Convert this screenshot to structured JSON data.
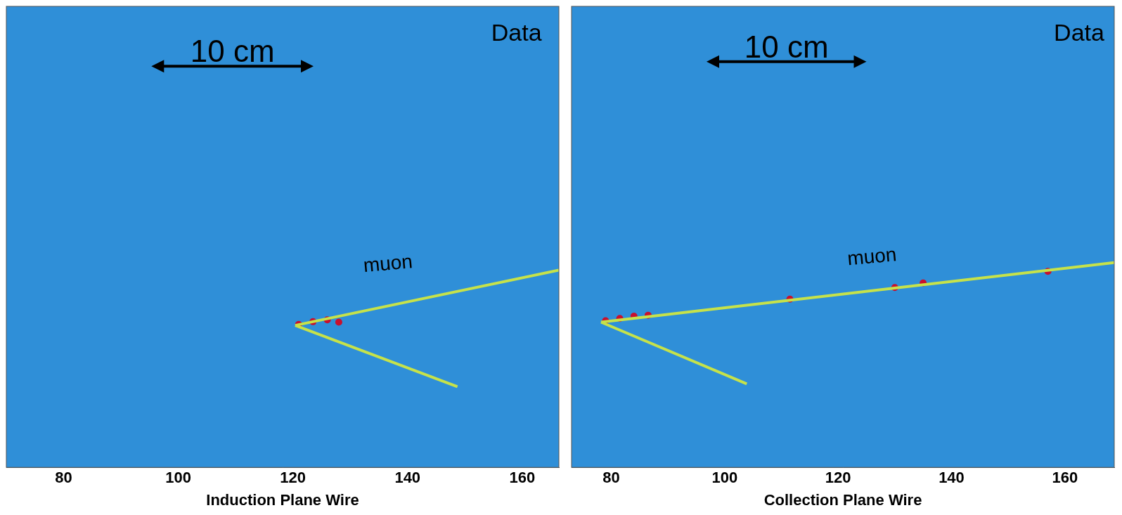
{
  "chart_data": [
    {
      "type": "line",
      "xlabel": "Induction Plane Wire",
      "xlim": [
        70,
        166.4
      ],
      "xticks": [
        80,
        100,
        120,
        140,
        160
      ],
      "ylim": [
        0,
        100
      ],
      "yticks": [],
      "tick_labels": "x",
      "grid": false,
      "series": [
        {
          "color": "#c6e24a",
          "line_style": "solid",
          "x": [
            120.4,
            166.4
          ],
          "values": [
            30.8,
            42.8
          ]
        },
        {
          "color": "#c6e24a",
          "line_style": "solid",
          "x": [
            120.4,
            148.7
          ],
          "values": [
            30.8,
            17.5
          ]
        },
        {
          "color": "#c8102e",
          "marker": "circle",
          "line_style": "none",
          "x": [
            121,
            123.5,
            126,
            128
          ],
          "values": [
            31,
            31.6,
            32,
            31.5
          ]
        }
      ],
      "annotations": [
        {
          "text": "10 cm",
          "x": [
            95.3,
            123.6
          ],
          "y": 87
        },
        {
          "text": "Data",
          "x": 159,
          "y": 94
        },
        {
          "text": "muon",
          "x": 136.6,
          "y": 44
        }
      ]
    },
    {
      "type": "line",
      "xlabel": "Collection Plane Wire",
      "xlim": [
        73,
        168.7
      ],
      "xticks": [
        80,
        100,
        120,
        140,
        160
      ],
      "ylim": [
        0,
        100
      ],
      "yticks": [],
      "tick_labels": "x",
      "grid": false,
      "series": [
        {
          "color": "#c6e24a",
          "line_style": "solid",
          "x": [
            78.2,
            168.7
          ],
          "values": [
            31.5,
            44.4
          ]
        },
        {
          "color": "#c6e24a",
          "line_style": "solid",
          "x": [
            78.2,
            103.9
          ],
          "values": [
            31.5,
            18.1
          ]
        },
        {
          "color": "#c8102e",
          "marker": "circle",
          "line_style": "none",
          "x": [
            79,
            81.5,
            84,
            86.5,
            111.5,
            130,
            135,
            157
          ],
          "values": [
            31.8,
            32.3,
            32.8,
            33,
            36.5,
            39,
            40,
            42.5
          ]
        }
      ],
      "annotations": [
        {
          "text": "10 cm",
          "x": [
            96.8,
            125.0
          ],
          "y": 88
        },
        {
          "text": "Data",
          "x": 162.5,
          "y": 94
        },
        {
          "text": "muon",
          "x": 126,
          "y": 45.5
        }
      ]
    }
  ]
}
